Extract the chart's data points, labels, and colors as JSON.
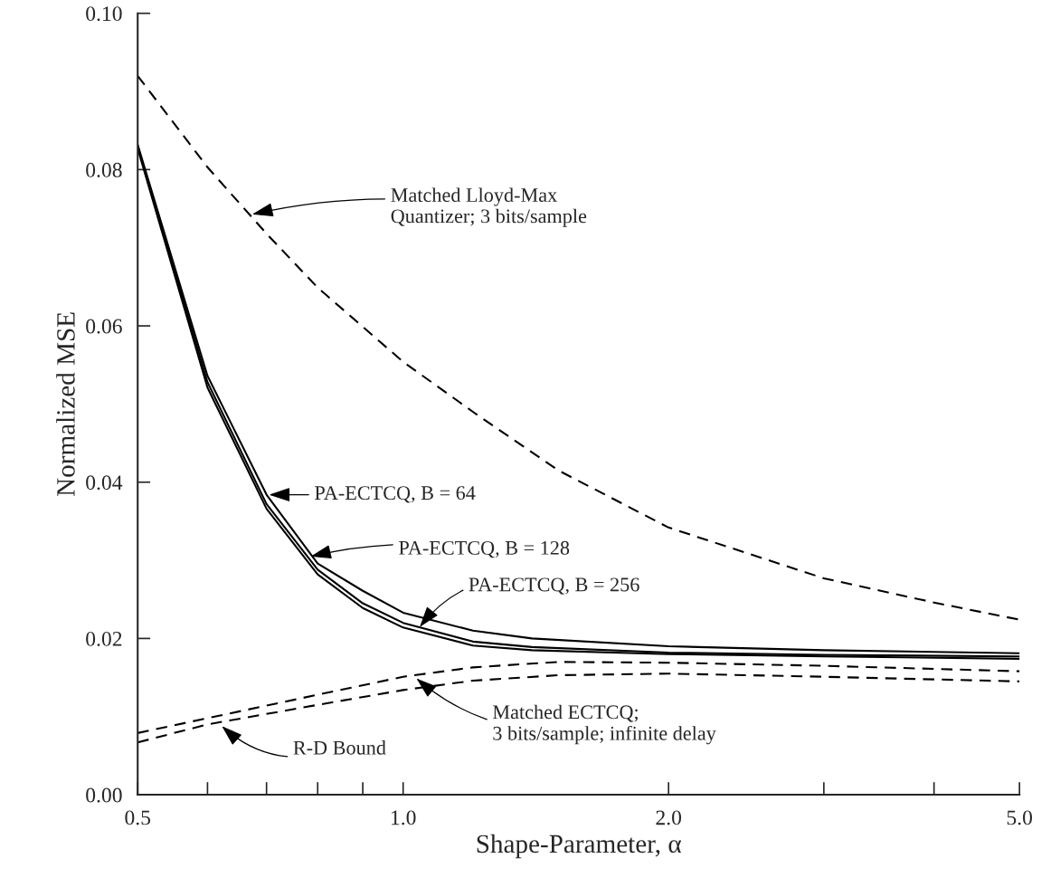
{
  "chart_data": {
    "type": "line",
    "xlabel": "Shape-Parameter, α",
    "ylabel": "Normalized MSE",
    "log": "x",
    "xlim": [
      0.5,
      5.0
    ],
    "xticks": [
      {
        "value": 0.5,
        "label": "0.5"
      },
      {
        "value": 0.6,
        "label": null
      },
      {
        "value": 0.7,
        "label": null
      },
      {
        "value": 0.8,
        "label": null
      },
      {
        "value": 0.9,
        "label": null
      },
      {
        "value": 1.0,
        "label": "1.0"
      },
      {
        "value": 2.0,
        "label": "2.0"
      },
      {
        "value": 3.0,
        "label": null
      },
      {
        "value": 4.0,
        "label": null
      },
      {
        "value": 5.0,
        "label": "5.0"
      }
    ],
    "ylim": [
      0,
      0.1
    ],
    "yticks": [
      {
        "value": 0,
        "label": "0.00"
      },
      {
        "value": 0.02,
        "label": "0.02"
      },
      {
        "value": 0.04,
        "label": "0.04"
      },
      {
        "value": 0.06,
        "label": "0.06"
      },
      {
        "value": 0.08,
        "label": "0.08"
      },
      {
        "value": 0.1,
        "label": "0.10"
      }
    ],
    "grid": false,
    "series": [
      {
        "color": "#000000",
        "line_style": "dashed",
        "x": [
          0.5,
          0.6,
          0.7,
          0.8,
          1.0,
          1.2,
          1.5,
          2.0,
          3.0,
          4.0,
          5.0
        ],
        "values": [
          0.092,
          0.0803,
          0.0718,
          0.0649,
          0.0554,
          0.049,
          0.0415,
          0.0342,
          0.0277,
          0.0246,
          0.0224
        ]
      },
      {
        "color": "#000000",
        "line_style": "solid",
        "x": [
          0.5,
          0.6,
          0.7,
          0.8,
          0.9,
          1.0,
          1.2,
          1.4,
          2.0,
          3.0,
          5.0
        ],
        "values": [
          0.0832,
          0.0536,
          0.0384,
          0.0296,
          0.0261,
          0.0233,
          0.021,
          0.02,
          0.019,
          0.0185,
          0.0181
        ]
      },
      {
        "color": "#000000",
        "line_style": "solid",
        "x": [
          0.5,
          0.6,
          0.7,
          0.8,
          0.9,
          1.0,
          1.2,
          1.4,
          2.0,
          3.0,
          5.0
        ],
        "values": [
          0.083,
          0.0528,
          0.0372,
          0.0288,
          0.0245,
          0.022,
          0.0196,
          0.0189,
          0.0182,
          0.0179,
          0.0177
        ]
      },
      {
        "color": "#000000",
        "line_style": "solid",
        "x": [
          0.5,
          0.6,
          0.7,
          0.8,
          0.9,
          1.0,
          1.2,
          1.4,
          2.0,
          3.0,
          5.0
        ],
        "values": [
          0.0827,
          0.0521,
          0.0366,
          0.0282,
          0.0239,
          0.0214,
          0.0191,
          0.0185,
          0.018,
          0.0177,
          0.0174
        ]
      },
      {
        "color": "#000000",
        "line_style": "dashed",
        "x": [
          0.5,
          0.6,
          0.8,
          1.0,
          1.2,
          1.5,
          2.0,
          3.0,
          5.0
        ],
        "values": [
          0.0079,
          0.0098,
          0.0128,
          0.0151,
          0.0163,
          0.017,
          0.0169,
          0.0165,
          0.0158
        ]
      },
      {
        "color": "#000000",
        "line_style": "dashed",
        "x": [
          0.5,
          0.6,
          0.8,
          1.0,
          1.2,
          1.5,
          2.0,
          3.0,
          5.0
        ],
        "values": [
          0.0067,
          0.009,
          0.0115,
          0.0134,
          0.0146,
          0.0153,
          0.0155,
          0.0151,
          0.0145
        ]
      }
    ],
    "annotations": [
      {
        "text": "Matched Lloyd-Max\nQuantizer; 3 bits/sample",
        "x": 0.67,
        "y": 0.0742
      },
      {
        "text": "PA-ECTCQ, B = 64",
        "x": 0.7,
        "y": 0.0384
      },
      {
        "text": "PA-ECTCQ, B = 128",
        "x": 0.78,
        "y": 0.0304
      },
      {
        "text": "PA-ECTCQ, B = 256",
        "x": 1.04,
        "y": 0.0212
      },
      {
        "text": "Matched ECTCQ;\n3 bits/sample; infinite delay",
        "x": 1.03,
        "y": 0.0151
      },
      {
        "text": "R-D Bound",
        "x": 0.62,
        "y": 0.009
      }
    ]
  }
}
